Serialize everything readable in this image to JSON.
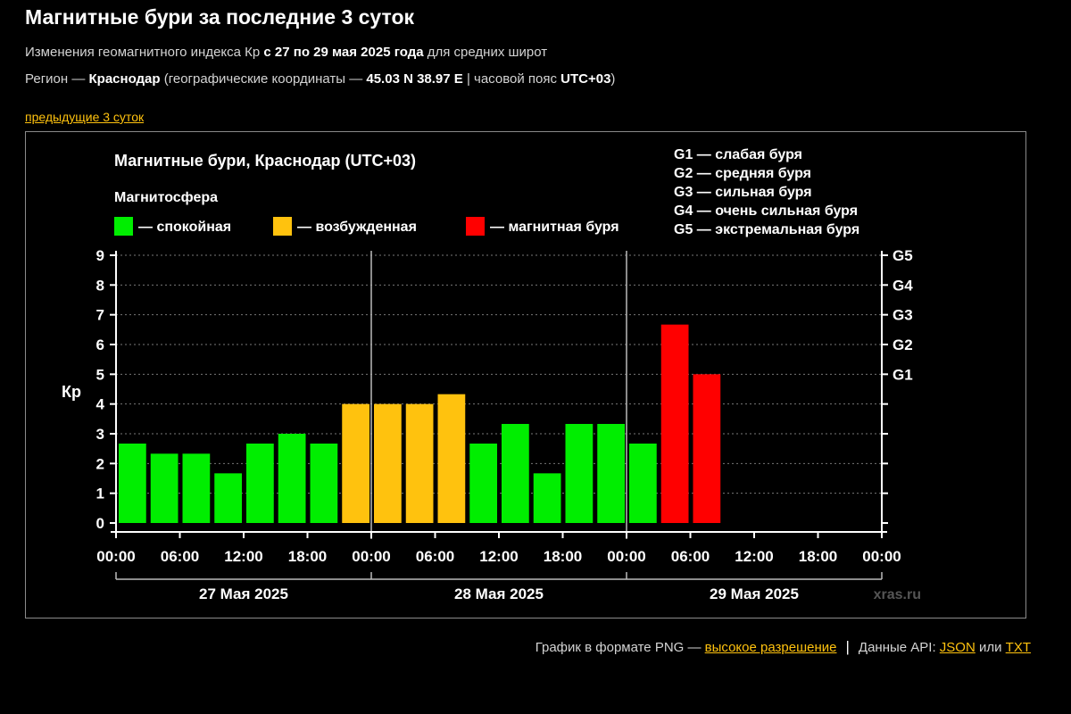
{
  "header": {
    "title": "Магнитные бури за последние 3 суток",
    "line1_prefix": "Изменения геомагнитного индекса Кр ",
    "line1_bold": "с 27 по 29 мая 2025 года",
    "line1_suffix": " для средних широт",
    "line2_prefix": "Регион — ",
    "line2_region": "Краснодар",
    "line2_mid": " (географические координаты — ",
    "line2_coords": "45.03 N 38.97 E",
    "line2_tz_prefix": " | часовой пояс ",
    "line2_tz": "UTC+03",
    "line2_suffix": ")",
    "prev_link": "предыдущие 3 суток"
  },
  "colors": {
    "quiet": "#00ee00",
    "excited": "#ffc20e",
    "storm": "#ff0000",
    "link": "#ffc20e"
  },
  "chart_data": {
    "type": "bar",
    "title": "Магнитные бури, Краснодар (UTC+03)",
    "legend_title": "Магнитосфера",
    "legend": [
      {
        "label": "— спокойная",
        "status": "quiet"
      },
      {
        "label": "— возбужденная",
        "status": "excited"
      },
      {
        "label": "— магнитная буря",
        "status": "storm"
      }
    ],
    "g_scale": [
      "G1 — слабая буря",
      "G2 — средняя буря",
      "G3 — сильная буря",
      "G4 — очень сильная буря",
      "G5 — экстремальная буря"
    ],
    "ylabel": "Кр",
    "ylim": [
      0,
      9
    ],
    "yticks": [
      "0",
      "1",
      "2",
      "3",
      "4",
      "5",
      "6",
      "7",
      "8",
      "9"
    ],
    "right_ticks": [
      {
        "label": "G1",
        "value": 5
      },
      {
        "label": "G2",
        "value": 6
      },
      {
        "label": "G3",
        "value": 7
      },
      {
        "label": "G4",
        "value": 8
      },
      {
        "label": "G5",
        "value": 9
      }
    ],
    "xticks": [
      "00:00",
      "06:00",
      "12:00",
      "18:00",
      "00:00",
      "06:00",
      "12:00",
      "18:00",
      "00:00",
      "06:00",
      "12:00",
      "18:00",
      "00:00"
    ],
    "days": [
      "27 Мая 2025",
      "28 Мая 2025",
      "29 Мая 2025"
    ],
    "slots_per_day": 8,
    "values": [
      2.67,
      2.33,
      2.33,
      1.67,
      2.67,
      3.0,
      2.67,
      4.0,
      4.0,
      4.0,
      4.33,
      2.67,
      3.33,
      1.67,
      3.33,
      3.33,
      2.67,
      6.67,
      5.0
    ],
    "status": [
      "quiet",
      "quiet",
      "quiet",
      "quiet",
      "quiet",
      "quiet",
      "quiet",
      "excited",
      "excited",
      "excited",
      "excited",
      "quiet",
      "quiet",
      "quiet",
      "quiet",
      "quiet",
      "quiet",
      "storm",
      "storm"
    ],
    "grid": "dotted",
    "watermark": "xras.ru"
  },
  "footer": {
    "png_prefix": "График в формате PNG — ",
    "png_link": "высокое разрешение",
    "sep": "|",
    "api_prefix": "Данные API: ",
    "json_link": "JSON",
    "or": " или ",
    "txt_link": "TXT"
  }
}
